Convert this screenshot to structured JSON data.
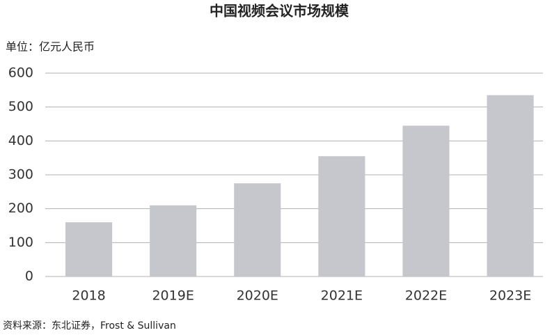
{
  "chart_data": {
    "type": "bar",
    "title": "中国视频会议市场规模",
    "unit_label": "单位：亿元人民币",
    "source": "资料来源：东北证券，Frost & Sullivan",
    "categories": [
      "2018",
      "2019E",
      "2020E",
      "2021E",
      "2022E",
      "2023E"
    ],
    "values": [
      160,
      210,
      275,
      355,
      445,
      535
    ],
    "color": "#c6c6cd",
    "ylim": [
      0,
      600
    ],
    "yticks": [
      0,
      100,
      200,
      300,
      400,
      500,
      600
    ],
    "grid": true
  }
}
